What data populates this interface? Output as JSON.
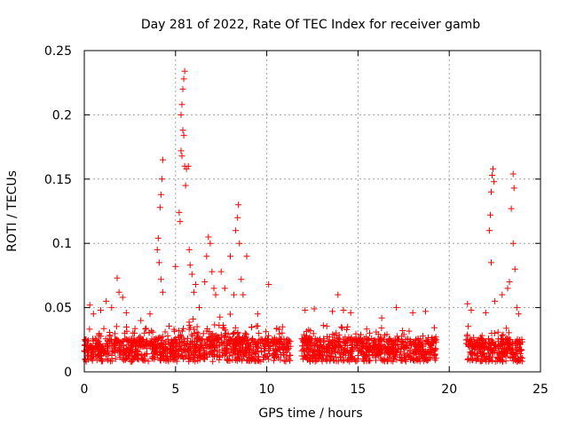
{
  "chart_data": {
    "type": "scatter",
    "title": "Day 281 of 2022, Rate Of TEC Index for receiver gamb",
    "xlabel": "GPS time / hours",
    "ylabel": "ROTI / TECUs",
    "xlim": [
      0,
      25
    ],
    "ylim": [
      0,
      0.25
    ],
    "x_ticks": [
      0,
      5,
      10,
      15,
      20,
      25
    ],
    "x_tick_labels": [
      "0",
      "5",
      "10",
      "15",
      "20",
      "25"
    ],
    "y_ticks": [
      0,
      0.05,
      0.1,
      0.15,
      0.2,
      0.25
    ],
    "y_tick_labels": [
      "0",
      "0.05",
      "0.1",
      "0.15",
      "0.2",
      "0.25"
    ],
    "grid": true,
    "marker": "plus",
    "color": "#ff0000",
    "data_gaps_hours": [
      [
        11.3,
        11.9
      ],
      [
        19.3,
        20.9
      ]
    ],
    "series": [
      {
        "points": [
          [
            0.3,
            0.052
          ],
          [
            0.5,
            0.045
          ],
          [
            0.9,
            0.048
          ],
          [
            1.2,
            0.055
          ],
          [
            1.5,
            0.05
          ],
          [
            1.8,
            0.073
          ],
          [
            1.9,
            0.062
          ],
          [
            2.1,
            0.058
          ],
          [
            2.3,
            0.046
          ],
          [
            3.1,
            0.04
          ],
          [
            3.6,
            0.045
          ],
          [
            4.0,
            0.095
          ],
          [
            4.1,
            0.085
          ],
          [
            4.2,
            0.072
          ],
          [
            4.3,
            0.062
          ],
          [
            4.05,
            0.104
          ],
          [
            4.15,
            0.128
          ],
          [
            4.2,
            0.138
          ],
          [
            4.25,
            0.15
          ],
          [
            4.3,
            0.165
          ],
          [
            5.0,
            0.082
          ],
          [
            5.2,
            0.124
          ],
          [
            5.25,
            0.117
          ],
          [
            5.3,
            0.2
          ],
          [
            5.35,
            0.208
          ],
          [
            5.4,
            0.22
          ],
          [
            5.45,
            0.228
          ],
          [
            5.5,
            0.234
          ],
          [
            5.3,
            0.172
          ],
          [
            5.35,
            0.168
          ],
          [
            5.4,
            0.188
          ],
          [
            5.45,
            0.184
          ],
          [
            5.5,
            0.16
          ],
          [
            5.55,
            0.145
          ],
          [
            5.6,
            0.158
          ],
          [
            5.7,
            0.16
          ],
          [
            5.75,
            0.095
          ],
          [
            5.8,
            0.083
          ],
          [
            5.9,
            0.076
          ],
          [
            6.0,
            0.062
          ],
          [
            6.1,
            0.068
          ],
          [
            6.3,
            0.05
          ],
          [
            6.6,
            0.07
          ],
          [
            6.7,
            0.09
          ],
          [
            6.8,
            0.105
          ],
          [
            6.9,
            0.1
          ],
          [
            7.0,
            0.078
          ],
          [
            7.1,
            0.065
          ],
          [
            7.2,
            0.06
          ],
          [
            7.5,
            0.078
          ],
          [
            7.7,
            0.065
          ],
          [
            8.0,
            0.09
          ],
          [
            8.2,
            0.06
          ],
          [
            8.3,
            0.11
          ],
          [
            8.4,
            0.12
          ],
          [
            8.45,
            0.13
          ],
          [
            8.5,
            0.1
          ],
          [
            8.6,
            0.072
          ],
          [
            8.7,
            0.06
          ],
          [
            8.9,
            0.09
          ],
          [
            10.1,
            0.068
          ],
          [
            9.5,
            0.045
          ],
          [
            12.1,
            0.048
          ],
          [
            12.6,
            0.049
          ],
          [
            13.6,
            0.047
          ],
          [
            13.9,
            0.06
          ],
          [
            14.2,
            0.048
          ],
          [
            14.6,
            0.046
          ],
          [
            16.3,
            0.042
          ],
          [
            17.1,
            0.05
          ],
          [
            18.0,
            0.046
          ],
          [
            18.7,
            0.047
          ],
          [
            21.0,
            0.053
          ],
          [
            21.2,
            0.048
          ],
          [
            22.0,
            0.046
          ],
          [
            22.2,
            0.11
          ],
          [
            22.25,
            0.122
          ],
          [
            22.3,
            0.14
          ],
          [
            22.35,
            0.153
          ],
          [
            22.4,
            0.158
          ],
          [
            22.45,
            0.148
          ],
          [
            22.3,
            0.085
          ],
          [
            22.5,
            0.055
          ],
          [
            22.9,
            0.06
          ],
          [
            23.2,
            0.065
          ],
          [
            23.3,
            0.07
          ],
          [
            23.4,
            0.127
          ],
          [
            23.5,
            0.154
          ],
          [
            23.55,
            0.143
          ],
          [
            23.5,
            0.1
          ],
          [
            23.6,
            0.08
          ],
          [
            23.7,
            0.05
          ],
          [
            23.8,
            0.045
          ]
        ]
      }
    ]
  }
}
